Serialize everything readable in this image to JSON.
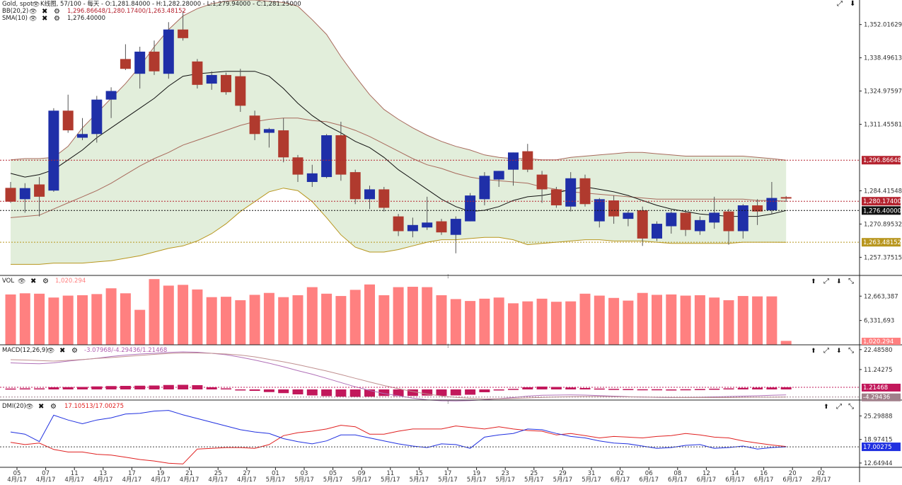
{
  "header": {
    "symbol": "Gold, spot",
    "chart_info": "K线图, 57/100 - 每天 - O:1,281.84000 - H:1,282.28000 - L:1,279.94000 - C:1,281.25000",
    "bb_label": "BB(20,2)",
    "bb_values": "1,296.86648/1,280.17400/1,263.48152",
    "sma_label": "SMA(10)",
    "sma_value": "1,276.40000",
    "vol_label": "VOL",
    "vol_value": "1,020.294",
    "macd_label": "MACD(12,26,9)",
    "macd_values": "-3.07968/-4.29436/1.21468",
    "dmi_label": "DMI(20)",
    "dmi_values": "17.10513/17.00275"
  },
  "price_axis": {
    "ticks": [
      "1,352.01629",
      "1,338.49613",
      "1,324.97597",
      "1,311.45581",
      "1,284.41548",
      "1,270.89532",
      "1,257.37515"
    ],
    "badges": [
      {
        "text": "1,296.86648",
        "value": 1296.86648,
        "color": "#b5232f"
      },
      {
        "text": "1,280.17400",
        "value": 1280.174,
        "color": "#b5232f"
      },
      {
        "text": "1,276.40000",
        "value": 1276.4,
        "color": "#111111"
      },
      {
        "text": "1,263.48152",
        "value": 1263.48152,
        "color": "#b8961e"
      }
    ]
  },
  "vol_axis": {
    "ticks": [
      "12,663,387",
      "6,331,693"
    ],
    "badge": "1,020.294"
  },
  "macd_axis": {
    "ticks": [
      "22.48580",
      "11.24275"
    ],
    "badges": [
      {
        "text": "1.21468",
        "color": "#c2185b"
      },
      {
        "text": "-4.29436",
        "color": "#a07f8a"
      }
    ]
  },
  "dmi_axis": {
    "ticks": [
      "25.29888",
      "18.97415",
      "12.64944"
    ],
    "badge": "17.00275"
  },
  "x_axis": {
    "days": [
      "05",
      "07",
      "11",
      "13",
      "17",
      "19",
      "21",
      "25",
      "27",
      "01",
      "03",
      "05",
      "09",
      "11",
      "15",
      "17",
      "19",
      "23",
      "25",
      "29",
      "31",
      "02",
      "06",
      "08",
      "12",
      "14",
      "16",
      "20",
      "02"
    ],
    "months": [
      "4月/17",
      "4月/17",
      "4月/17",
      "4月/17",
      "4月/17",
      "4月/17",
      "4月/17",
      "4月/17",
      "4月/17",
      "5月/17",
      "5月/17",
      "5月/17",
      "5月/17",
      "5月/17",
      "5月/17",
      "5月/17",
      "5月/17",
      "5月/17",
      "5月/17",
      "5月/17",
      "5月/17",
      "6月/17",
      "6月/17",
      "6月/17",
      "6月/17",
      "6月/17",
      "6月/17",
      "6月/17",
      "2月/17"
    ]
  },
  "colors": {
    "up": "#1f2fa8",
    "down": "#b03a2e",
    "band_fill": "#e2eedb",
    "band_line": "#a86a5c",
    "lower_line": "#b8961e",
    "sma_line": "#111111",
    "vol_bar": "#ff8080",
    "macd_hist": "#c2185b",
    "dmi_plus": "#e02020",
    "dmi_minus": "#2030e0"
  },
  "chart_data": [
    {
      "type": "candlestick",
      "title": "Gold, spot",
      "y_range": [
        1250,
        1362
      ],
      "candles": [
        [
          1285.6,
          1288.0,
          1279.5,
          1280.0
        ],
        [
          1281.0,
          1287.5,
          1275.5,
          1285.5
        ],
        [
          1287.0,
          1290.0,
          1274.0,
          1282.0
        ],
        [
          1284.5,
          1318.0,
          1284.0,
          1317.0
        ],
        [
          1317.0,
          1323.5,
          1308.0,
          1309.0
        ],
        [
          1306.0,
          1314.0,
          1305.0,
          1307.5
        ],
        [
          1307.5,
          1323.0,
          1304.0,
          1321.5
        ],
        [
          1321.5,
          1326.5,
          1314.0,
          1325.0
        ],
        [
          1338.0,
          1344.0,
          1333.5,
          1334.0
        ],
        [
          1332.0,
          1343.0,
          1326.0,
          1341.0
        ],
        [
          1341.0,
          1345.5,
          1331.5,
          1333.0
        ],
        [
          1332.0,
          1353.0,
          1330.0,
          1350.0
        ],
        [
          1350.0,
          1357.5,
          1345.5,
          1346.5
        ],
        [
          1337.0,
          1338.0,
          1326.0,
          1327.5
        ],
        [
          1328.0,
          1333.0,
          1325.5,
          1331.5
        ],
        [
          1331.5,
          1332.5,
          1323.5,
          1324.5
        ],
        [
          1331.0,
          1334.0,
          1316.5,
          1319.0
        ],
        [
          1315.0,
          1317.0,
          1305.0,
          1307.5
        ],
        [
          1308.0,
          1310.0,
          1302.0,
          1309.5
        ],
        [
          1309.0,
          1314.0,
          1296.0,
          1298.0
        ],
        [
          1298.0,
          1299.0,
          1288.0,
          1291.0
        ],
        [
          1288.0,
          1295.0,
          1286.0,
          1291.5
        ],
        [
          1290.0,
          1307.5,
          1289.5,
          1307.0
        ],
        [
          1307.0,
          1312.5,
          1288.5,
          1291.0
        ],
        [
          1292.0,
          1293.0,
          1279.0,
          1281.0
        ],
        [
          1281.0,
          1286.5,
          1277.0,
          1285.0
        ],
        [
          1285.0,
          1286.0,
          1276.0,
          1277.5
        ],
        [
          1274.0,
          1275.0,
          1266.0,
          1268.0
        ],
        [
          1268.0,
          1273.5,
          1265.5,
          1270.5
        ],
        [
          1269.5,
          1282.0,
          1268.5,
          1271.5
        ],
        [
          1272.0,
          1273.0,
          1266.5,
          1267.5
        ],
        [
          1266.5,
          1274.0,
          1259.0,
          1273.0
        ],
        [
          1272.0,
          1283.5,
          1272.0,
          1282.5
        ],
        [
          1281.0,
          1292.0,
          1278.5,
          1290.5
        ],
        [
          1289.0,
          1292.5,
          1286.0,
          1292.5
        ],
        [
          1293.0,
          1300.0,
          1286.5,
          1300.0
        ],
        [
          1300.5,
          1303.5,
          1292.0,
          1293.0
        ],
        [
          1291.0,
          1292.5,
          1279.5,
          1285.0
        ],
        [
          1285.0,
          1286.0,
          1277.5,
          1278.5
        ],
        [
          1278.0,
          1292.0,
          1276.0,
          1289.5
        ],
        [
          1289.5,
          1291.0,
          1278.0,
          1279.0
        ],
        [
          1272.0,
          1281.5,
          1269.5,
          1281.0
        ],
        [
          1280.5,
          1282.5,
          1271.0,
          1274.0
        ],
        [
          1273.0,
          1276.5,
          1270.0,
          1275.5
        ],
        [
          1276.5,
          1278.0,
          1262.0,
          1265.0
        ],
        [
          1265.0,
          1272.0,
          1264.0,
          1271.0
        ],
        [
          1270.0,
          1276.0,
          1267.0,
          1275.5
        ],
        [
          1275.5,
          1276.5,
          1266.0,
          1268.5
        ],
        [
          1268.0,
          1274.0,
          1266.5,
          1272.5
        ],
        [
          1271.5,
          1282.0,
          1269.0,
          1275.5
        ],
        [
          1276.0,
          1277.0,
          1262.5,
          1268.0
        ],
        [
          1268.0,
          1279.0,
          1265.0,
          1278.5
        ],
        [
          1278.5,
          1281.0,
          1270.5,
          1276.0
        ],
        [
          1276.5,
          1288.0,
          1275.0,
          1281.5
        ],
        [
          1281.84,
          1282.28,
          1279.94,
          1281.25
        ]
      ],
      "sma10": [
        1291.5,
        1290.0,
        1291.0,
        1293.0,
        1297.0,
        1301.0,
        1306.0,
        1310.0,
        1314.0,
        1318.0,
        1322.0,
        1327.0,
        1331.0,
        1332.0,
        1332.5,
        1333.0,
        1333.0,
        1333.0,
        1331.0,
        1326.0,
        1320.0,
        1315.0,
        1311.0,
        1308.0,
        1304.5,
        1302.0,
        1298.0,
        1293.0,
        1289.0,
        1285.0,
        1281.0,
        1278.0,
        1276.0,
        1276.5,
        1278.0,
        1280.5,
        1282.0,
        1282.5,
        1283.5,
        1285.0,
        1286.0,
        1285.0,
        1284.0,
        1282.5,
        1280.5,
        1278.5,
        1277.0,
        1276.0,
        1275.0,
        1274.5,
        1274.0,
        1274.0,
        1274.0,
        1275.0,
        1276.4
      ],
      "bb_upper": [
        1297.0,
        1297.5,
        1297.5,
        1298.0,
        1302.5,
        1310.0,
        1316.0,
        1322.0,
        1328.0,
        1335.0,
        1343.0,
        1350.0,
        1355.5,
        1358.5,
        1360.5,
        1361.5,
        1362.0,
        1362.0,
        1361.5,
        1361.0,
        1359.5,
        1354.0,
        1348.0,
        1339.0,
        1331.0,
        1323.5,
        1317.5,
        1313.5,
        1310.0,
        1307.0,
        1304.5,
        1302.5,
        1301.0,
        1299.0,
        1298.0,
        1297.5,
        1297.5,
        1297.0,
        1297.0,
        1298.0,
        1298.5,
        1299.0,
        1299.5,
        1300.0,
        1300.0,
        1299.5,
        1299.0,
        1298.5,
        1298.5,
        1298.5,
        1298.5,
        1298.5,
        1298.0,
        1297.5,
        1296.87
      ],
      "bb_mid": [
        1273.5,
        1274.0,
        1274.5,
        1277.0,
        1279.5,
        1282.0,
        1284.5,
        1287.5,
        1291.0,
        1294.5,
        1297.5,
        1300.0,
        1303.0,
        1305.0,
        1307.0,
        1309.0,
        1311.0,
        1312.5,
        1313.5,
        1314.0,
        1314.0,
        1313.0,
        1312.5,
        1311.0,
        1309.0,
        1306.5,
        1303.5,
        1300.5,
        1297.5,
        1295.0,
        1293.5,
        1291.5,
        1290.0,
        1289.0,
        1288.5,
        1288.0,
        1287.5,
        1286.0,
        1285.0,
        1284.0,
        1283.5,
        1283.0,
        1282.5,
        1282.0,
        1281.5,
        1281.0,
        1281.0,
        1281.0,
        1281.0,
        1281.0,
        1281.0,
        1281.0,
        1280.5,
        1280.5,
        1280.17
      ],
      "bb_lower": [
        1254.5,
        1254.5,
        1254.5,
        1255.0,
        1255.0,
        1255.0,
        1255.5,
        1256.0,
        1257.0,
        1258.0,
        1259.5,
        1261.0,
        1262.0,
        1264.0,
        1267.0,
        1271.0,
        1276.0,
        1280.0,
        1284.0,
        1285.5,
        1284.5,
        1280.0,
        1273.5,
        1266.5,
        1261.5,
        1259.5,
        1259.5,
        1260.5,
        1262.0,
        1263.5,
        1264.5,
        1264.5,
        1265.0,
        1265.5,
        1265.5,
        1264.5,
        1262.5,
        1263.0,
        1263.5,
        1264.0,
        1264.5,
        1264.5,
        1264.0,
        1264.0,
        1264.0,
        1263.5,
        1263.0,
        1263.0,
        1263.0,
        1263.0,
        1263.0,
        1263.5,
        1263.5,
        1263.5,
        1263.48
      ]
    },
    {
      "type": "bar",
      "title": "VOL",
      "y_range": [
        0,
        17500000
      ],
      "values": [
        13100000,
        13400000,
        13300000,
        12300000,
        12800000,
        12900000,
        13200000,
        14700000,
        13400000,
        9100000,
        17100000,
        15400000,
        15600000,
        14400000,
        12400000,
        12500000,
        11600000,
        13000000,
        13500000,
        12400000,
        12900000,
        15000000,
        13300000,
        12700000,
        14300000,
        15700000,
        12900000,
        15000000,
        15100000,
        15000000,
        12900000,
        11900000,
        11400000,
        12000000,
        12300000,
        10800000,
        11300000,
        12000000,
        11200000,
        11300000,
        13300000,
        12800000,
        12200000,
        11500000,
        13500000,
        13000000,
        13100000,
        12800000,
        12900000,
        12300000,
        11600000,
        12700000,
        12600000,
        12600000,
        1020294
      ]
    },
    {
      "type": "bar",
      "title": "MACD(12,26,9)",
      "y_range": [
        -6,
        24
      ],
      "values": [
        0.5,
        0.6,
        0.6,
        1.2,
        1.3,
        1.4,
        1.7,
        1.9,
        2.0,
        2.1,
        2.2,
        2.5,
        2.6,
        2.4,
        1.2,
        0.6,
        -0.2,
        -0.8,
        -1.5,
        -2.1,
        -2.8,
        -3.4,
        -3.8,
        -4.1,
        -4.2,
        -4.1,
        -3.7,
        -3.8,
        -3.7,
        -3.5,
        -3.6,
        -3.4,
        -3.0,
        -1.6,
        -0.6,
        0.3,
        1.2,
        1.6,
        1.4,
        1.1,
        0.8,
        0.5,
        0.3,
        0.2,
        0.1,
        0.1,
        0.0,
        0.1,
        0.2,
        0.4,
        0.6,
        0.9,
        1.0,
        1.1,
        1.21
      ],
      "macd": [
        15.0,
        14.7,
        14.5,
        15.0,
        16.0,
        16.8,
        17.6,
        18.6,
        19.4,
        20.0,
        20.4,
        20.9,
        21.2,
        21.0,
        20.4,
        19.6,
        18.2,
        16.6,
        14.8,
        12.8,
        10.6,
        8.6,
        6.3,
        3.9,
        1.5,
        -0.6,
        -2.3,
        -3.6,
        -4.9,
        -5.9,
        -6.4,
        -6.5,
        -6.3,
        -5.8,
        -5.2,
        -4.6,
        -3.8,
        -3.3,
        -3.2,
        -3.1,
        -3.2,
        -3.5,
        -3.8,
        -4.1,
        -4.3,
        -4.5,
        -4.6,
        -4.5,
        -4.4,
        -4.2,
        -4.0,
        -3.8,
        -3.6,
        -3.3,
        -3.08
      ],
      "signal": [
        16.8,
        16.6,
        16.3,
        16.0,
        16.4,
        16.9,
        17.5,
        18.0,
        18.6,
        19.2,
        19.8,
        20.3,
        20.6,
        20.6,
        20.4,
        20.0,
        19.4,
        18.4,
        17.0,
        15.6,
        14.0,
        12.2,
        10.4,
        8.4,
        6.3,
        4.2,
        2.2,
        0.4,
        -1.2,
        -2.6,
        -3.7,
        -4.5,
        -5.0,
        -5.3,
        -5.3,
        -5.1,
        -4.8,
        -4.5,
        -4.3,
        -4.1,
        -4.0,
        -4.0,
        -4.1,
        -4.2,
        -4.3,
        -4.4,
        -4.5,
        -4.6,
        -4.6,
        -4.6,
        -4.6,
        -4.5,
        -4.4,
        -4.4,
        -4.29
      ]
    },
    {
      "type": "line",
      "title": "DMI(20)",
      "y_range": [
        11.5,
        29
      ],
      "series": [
        {
          "name": "DMI+",
          "values": [
            18.2,
            17.6,
            18.0,
            16.3,
            15.6,
            15.6,
            15.0,
            14.8,
            14.2,
            13.6,
            13.2,
            12.6,
            12.4,
            16.4,
            16.6,
            16.8,
            16.8,
            16.6,
            17.6,
            20.0,
            20.8,
            21.2,
            21.8,
            22.8,
            22.4,
            20.4,
            20.4,
            21.2,
            21.8,
            21.8,
            21.8,
            22.6,
            22.2,
            21.8,
            22.4,
            21.8,
            21.4,
            21.2,
            20.2,
            20.6,
            20.0,
            19.4,
            19.8,
            19.6,
            19.4,
            19.8,
            20.0,
            20.6,
            20.2,
            19.6,
            19.4,
            18.6,
            18.0,
            17.5,
            17.1
          ]
        },
        {
          "name": "DMI-",
          "values": [
            21.0,
            20.4,
            18.4,
            25.5,
            24.2,
            23.2,
            24.2,
            24.8,
            25.8,
            26.0,
            26.6,
            26.8,
            25.6,
            24.6,
            23.6,
            22.6,
            21.6,
            21.0,
            20.6,
            19.2,
            18.4,
            17.8,
            18.6,
            20.2,
            20.2,
            19.4,
            18.6,
            17.8,
            17.2,
            16.8,
            17.8,
            17.6,
            16.6,
            19.6,
            20.2,
            20.6,
            21.8,
            21.6,
            20.6,
            19.8,
            19.4,
            18.6,
            18.0,
            17.8,
            17.2,
            16.6,
            16.8,
            17.4,
            17.6,
            16.6,
            16.8,
            17.2,
            16.4,
            16.8,
            17.0
          ]
        }
      ]
    }
  ]
}
